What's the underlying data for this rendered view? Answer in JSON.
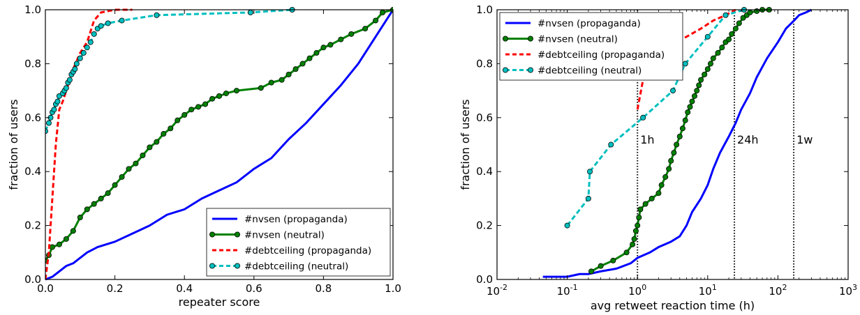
{
  "chart_data": [
    {
      "type": "line",
      "xlabel": "repeater score",
      "ylabel": "fraction of users",
      "xlim": [
        0,
        1
      ],
      "ylim": [
        0,
        1
      ],
      "xscale": "linear",
      "xticks": [
        0,
        0.2,
        0.4,
        0.6,
        0.8,
        1.0
      ],
      "xtick_labels": [
        "0.0",
        "0.2",
        "0.4",
        "0.6",
        "0.8",
        "1.0"
      ],
      "yticks": [
        0,
        0.2,
        0.4,
        0.6,
        0.8,
        1.0
      ],
      "ytick_labels": [
        "0.0",
        "0.2",
        "0.4",
        "0.6",
        "0.8",
        "1.0"
      ],
      "grid": false,
      "legend_position": "bottom-right",
      "series": [
        {
          "name": "#nvsen (propaganda)",
          "color": "#0000ff",
          "style": "solid",
          "marker": "none",
          "x": [
            0.0,
            0.02,
            0.04,
            0.06,
            0.08,
            0.1,
            0.12,
            0.15,
            0.2,
            0.25,
            0.3,
            0.35,
            0.4,
            0.45,
            0.5,
            0.55,
            0.6,
            0.65,
            0.7,
            0.75,
            0.8,
            0.85,
            0.9,
            0.95,
            1.0
          ],
          "y": [
            0.0,
            0.01,
            0.03,
            0.05,
            0.06,
            0.08,
            0.1,
            0.12,
            0.14,
            0.17,
            0.2,
            0.24,
            0.26,
            0.3,
            0.33,
            0.36,
            0.41,
            0.45,
            0.52,
            0.58,
            0.65,
            0.72,
            0.8,
            0.9,
            1.0
          ]
        },
        {
          "name": "#nvsen (neutral)",
          "color": "#008000",
          "style": "solid",
          "marker": "circle",
          "x": [
            0.0,
            0.01,
            0.02,
            0.04,
            0.06,
            0.08,
            0.1,
            0.12,
            0.14,
            0.16,
            0.18,
            0.2,
            0.22,
            0.24,
            0.26,
            0.28,
            0.3,
            0.32,
            0.34,
            0.36,
            0.38,
            0.4,
            0.42,
            0.44,
            0.46,
            0.48,
            0.5,
            0.52,
            0.55,
            0.62,
            0.65,
            0.68,
            0.7,
            0.72,
            0.74,
            0.76,
            0.78,
            0.8,
            0.82,
            0.85,
            0.88,
            0.92,
            0.95,
            0.97,
            1.0
          ],
          "y": [
            0.07,
            0.09,
            0.12,
            0.13,
            0.15,
            0.18,
            0.23,
            0.26,
            0.28,
            0.3,
            0.32,
            0.35,
            0.38,
            0.41,
            0.43,
            0.46,
            0.49,
            0.51,
            0.54,
            0.56,
            0.59,
            0.61,
            0.63,
            0.64,
            0.65,
            0.67,
            0.68,
            0.69,
            0.7,
            0.71,
            0.73,
            0.74,
            0.76,
            0.78,
            0.8,
            0.82,
            0.84,
            0.86,
            0.87,
            0.89,
            0.91,
            0.93,
            0.96,
            0.99,
            1.0
          ]
        },
        {
          "name": "#debtceiling (propaganda)",
          "color": "#ff0000",
          "style": "dashed",
          "marker": "none",
          "x": [
            0.0,
            0.01,
            0.02,
            0.03,
            0.04,
            0.05,
            0.06,
            0.07,
            0.08,
            0.1,
            0.12,
            0.13,
            0.14,
            0.16,
            0.2,
            0.25
          ],
          "y": [
            0.0,
            0.1,
            0.3,
            0.5,
            0.63,
            0.66,
            0.7,
            0.74,
            0.78,
            0.84,
            0.88,
            0.92,
            0.96,
            0.99,
            1.0,
            1.0
          ]
        },
        {
          "name": "#debtceiling (neutral)",
          "color": "#00bfbf",
          "style": "dashed",
          "marker": "circle",
          "x": [
            0.0,
            0.01,
            0.015,
            0.02,
            0.025,
            0.03,
            0.035,
            0.04,
            0.05,
            0.055,
            0.06,
            0.065,
            0.07,
            0.075,
            0.08,
            0.085,
            0.09,
            0.1,
            0.11,
            0.12,
            0.13,
            0.14,
            0.15,
            0.16,
            0.18,
            0.22,
            0.32,
            0.59,
            0.71
          ],
          "y": [
            0.55,
            0.58,
            0.6,
            0.62,
            0.63,
            0.65,
            0.66,
            0.68,
            0.69,
            0.7,
            0.71,
            0.73,
            0.74,
            0.76,
            0.77,
            0.78,
            0.8,
            0.82,
            0.84,
            0.86,
            0.88,
            0.91,
            0.93,
            0.94,
            0.95,
            0.96,
            0.98,
            0.99,
            1.0
          ]
        }
      ]
    },
    {
      "type": "line",
      "xlabel": "avg retweet reaction time (h)",
      "ylabel": "fraction of users",
      "xlim": [
        0.01,
        1000
      ],
      "ylim": [
        0,
        1
      ],
      "xscale": "log",
      "xticks": [
        0.01,
        0.1,
        1,
        10,
        100,
        1000
      ],
      "xtick_bases": [
        "10",
        "10",
        "10",
        "10",
        "10",
        "10"
      ],
      "xtick_exps": [
        "-2",
        "-1",
        "0",
        "1",
        "2",
        "3"
      ],
      "yticks": [
        0,
        0.2,
        0.4,
        0.6,
        0.8,
        1.0
      ],
      "ytick_labels": [
        "0.0",
        "0.2",
        "0.4",
        "0.6",
        "0.8",
        "1.0"
      ],
      "grid": false,
      "legend_position": "top-left",
      "reference_lines": [
        {
          "x": 1,
          "label": "1h"
        },
        {
          "x": 24,
          "label": "24h"
        },
        {
          "x": 168,
          "label": "1w"
        }
      ],
      "series": [
        {
          "name": "#nvsen (propaganda)",
          "color": "#0000ff",
          "style": "solid",
          "marker": "none",
          "x": [
            0.045,
            0.1,
            0.15,
            0.2,
            0.3,
            0.5,
            0.8,
            1,
            1.5,
            2,
            3,
            4,
            5,
            6,
            8,
            10,
            12,
            15,
            20,
            25,
            30,
            40,
            50,
            70,
            100,
            130,
            170,
            200,
            250,
            300
          ],
          "y": [
            0.01,
            0.01,
            0.02,
            0.02,
            0.03,
            0.04,
            0.06,
            0.08,
            0.1,
            0.12,
            0.14,
            0.16,
            0.2,
            0.25,
            0.3,
            0.35,
            0.41,
            0.47,
            0.53,
            0.58,
            0.63,
            0.69,
            0.75,
            0.82,
            0.88,
            0.93,
            0.96,
            0.98,
            0.99,
            1.0
          ]
        },
        {
          "name": "#nvsen (neutral)",
          "color": "#008000",
          "style": "solid",
          "marker": "circle",
          "x": [
            0.22,
            0.3,
            0.45,
            0.7,
            0.85,
            0.9,
            0.95,
            1.0,
            1.05,
            1.1,
            1.3,
            1.6,
            2.0,
            2.2,
            2.5,
            2.8,
            3.0,
            3.3,
            3.6,
            4.0,
            4.4,
            4.8,
            5.2,
            5.6,
            6.0,
            6.5,
            7.0,
            7.5,
            8.0,
            9.0,
            10,
            11,
            12,
            14,
            16,
            18,
            20,
            22,
            25,
            28,
            32,
            36,
            40,
            50,
            60,
            75
          ],
          "y": [
            0.03,
            0.05,
            0.07,
            0.1,
            0.13,
            0.15,
            0.18,
            0.2,
            0.23,
            0.26,
            0.28,
            0.3,
            0.32,
            0.35,
            0.38,
            0.41,
            0.44,
            0.47,
            0.5,
            0.53,
            0.56,
            0.59,
            0.62,
            0.64,
            0.66,
            0.68,
            0.7,
            0.72,
            0.74,
            0.76,
            0.78,
            0.8,
            0.82,
            0.84,
            0.86,
            0.88,
            0.89,
            0.91,
            0.93,
            0.95,
            0.97,
            0.98,
            0.99,
            0.995,
            1.0,
            1.0
          ]
        },
        {
          "name": "#debtceiling (propaganda)",
          "color": "#ff0000",
          "style": "dashed",
          "marker": "none",
          "x": [
            1.0,
            1.2,
            1.5,
            2.0,
            3.0,
            5.0,
            8.0,
            12,
            18,
            25
          ],
          "y": [
            0.63,
            0.74,
            0.8,
            0.84,
            0.87,
            0.9,
            0.93,
            0.96,
            0.98,
            1.0
          ]
        },
        {
          "name": "#debtceiling (neutral)",
          "color": "#00bfbf",
          "style": "dashed",
          "marker": "circle",
          "x": [
            0.1,
            0.2,
            0.21,
            0.42,
            1.2,
            3.2,
            4.8,
            10,
            18,
            33
          ],
          "y": [
            0.2,
            0.3,
            0.4,
            0.5,
            0.6,
            0.7,
            0.8,
            0.9,
            0.98,
            1.0
          ]
        }
      ]
    }
  ]
}
